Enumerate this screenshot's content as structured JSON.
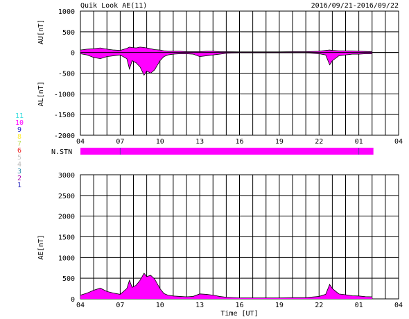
{
  "header": {
    "title": "Quik Look AE(11)",
    "date_range": "2016/09/21-2016/09/22"
  },
  "legend": {
    "items": [
      {
        "label": "11",
        "color": "#33dddd"
      },
      {
        "label": "10",
        "color": "#ff00ff"
      },
      {
        "label": "9",
        "color": "#2222cc"
      },
      {
        "label": "8",
        "color": "#ffee33"
      },
      {
        "label": "7",
        "color": "#bbdd55"
      },
      {
        "label": "6",
        "color": "#ee2222"
      },
      {
        "label": "5",
        "color": "#c8c8c8"
      },
      {
        "label": "4",
        "color": "#bbbbbb"
      },
      {
        "label": "3",
        "color": "#2288aa"
      },
      {
        "label": "2",
        "color": "#aa00aa"
      },
      {
        "label": "1",
        "color": "#2222bb"
      }
    ]
  },
  "station_bar": {
    "label": "N.STN",
    "color": "#ff00ff",
    "ticks_ut": [
      7,
      25
    ]
  },
  "chart_data": [
    {
      "type": "area",
      "panel": "AU/AL",
      "ylabels": [
        "AU[nT]",
        "AL[nT]"
      ],
      "xlabel": "",
      "ylim": [
        -2000,
        1000
      ],
      "yticks": [
        1000,
        500,
        0,
        -500,
        -1000,
        -1500,
        -2000
      ],
      "xlim": [
        4,
        28
      ],
      "xticks": [
        "04",
        "07",
        "10",
        "13",
        "16",
        "19",
        "22",
        "01",
        "04"
      ],
      "grid": true,
      "fill_color": "#ff00ff",
      "x": [
        4.0,
        4.5,
        5.0,
        5.5,
        6.0,
        6.5,
        7.0,
        7.5,
        7.7,
        7.9,
        8.2,
        8.5,
        8.8,
        9.0,
        9.3,
        9.6,
        10.0,
        10.3,
        10.6,
        11.0,
        11.5,
        12.0,
        12.5,
        13.0,
        13.5,
        14.0,
        14.5,
        15.0,
        16.0,
        17.0,
        18.0,
        19.0,
        20.0,
        21.0,
        22.0,
        22.5,
        22.8,
        23.0,
        23.5,
        24.0,
        24.5,
        25.0,
        25.5,
        26.0
      ],
      "series": [
        {
          "name": "AU",
          "values": [
            60,
            80,
            90,
            110,
            80,
            60,
            50,
            100,
            130,
            120,
            110,
            130,
            120,
            110,
            90,
            70,
            60,
            40,
            30,
            30,
            30,
            20,
            20,
            20,
            30,
            30,
            20,
            20,
            15,
            15,
            15,
            15,
            20,
            20,
            30,
            50,
            60,
            50,
            40,
            40,
            35,
            30,
            25,
            20
          ]
        },
        {
          "name": "AL",
          "values": [
            -30,
            -60,
            -120,
            -150,
            -100,
            -80,
            -60,
            -150,
            -400,
            -200,
            -250,
            -350,
            -550,
            -450,
            -500,
            -420,
            -200,
            -100,
            -60,
            -40,
            -30,
            -30,
            -40,
            -100,
            -80,
            -60,
            -40,
            -20,
            -10,
            -10,
            -10,
            -10,
            -10,
            -10,
            -30,
            -60,
            -300,
            -200,
            -80,
            -60,
            -40,
            -40,
            -30,
            -30
          ]
        }
      ]
    },
    {
      "type": "area",
      "panel": "AE",
      "ylabel": "AE[nT]",
      "xlabel": "Time [UT]",
      "ylim": [
        0,
        3000
      ],
      "yticks": [
        3000,
        2500,
        2000,
        1500,
        1000,
        500,
        0
      ],
      "xlim": [
        4,
        28
      ],
      "xticks": [
        "04",
        "07",
        "10",
        "13",
        "16",
        "19",
        "22",
        "01",
        "04"
      ],
      "grid": true,
      "fill_color": "#ff00ff",
      "x": [
        4.0,
        4.5,
        5.0,
        5.5,
        6.0,
        6.5,
        7.0,
        7.5,
        7.7,
        7.9,
        8.2,
        8.5,
        8.8,
        9.0,
        9.3,
        9.6,
        10.0,
        10.3,
        10.6,
        11.0,
        11.5,
        12.0,
        12.5,
        13.0,
        13.5,
        14.0,
        14.5,
        15.0,
        16.0,
        17.0,
        18.0,
        19.0,
        20.0,
        21.0,
        22.0,
        22.5,
        22.8,
        23.0,
        23.5,
        24.0,
        24.5,
        25.0,
        25.5,
        26.0
      ],
      "series": [
        {
          "name": "AE",
          "values": [
            90,
            140,
            210,
            260,
            180,
            140,
            110,
            250,
            450,
            280,
            330,
            450,
            620,
            540,
            570,
            480,
            250,
            130,
            90,
            70,
            60,
            50,
            60,
            120,
            110,
            90,
            60,
            40,
            25,
            25,
            25,
            25,
            30,
            30,
            60,
            110,
            350,
            250,
            120,
            100,
            75,
            70,
            55,
            50
          ]
        }
      ]
    }
  ]
}
